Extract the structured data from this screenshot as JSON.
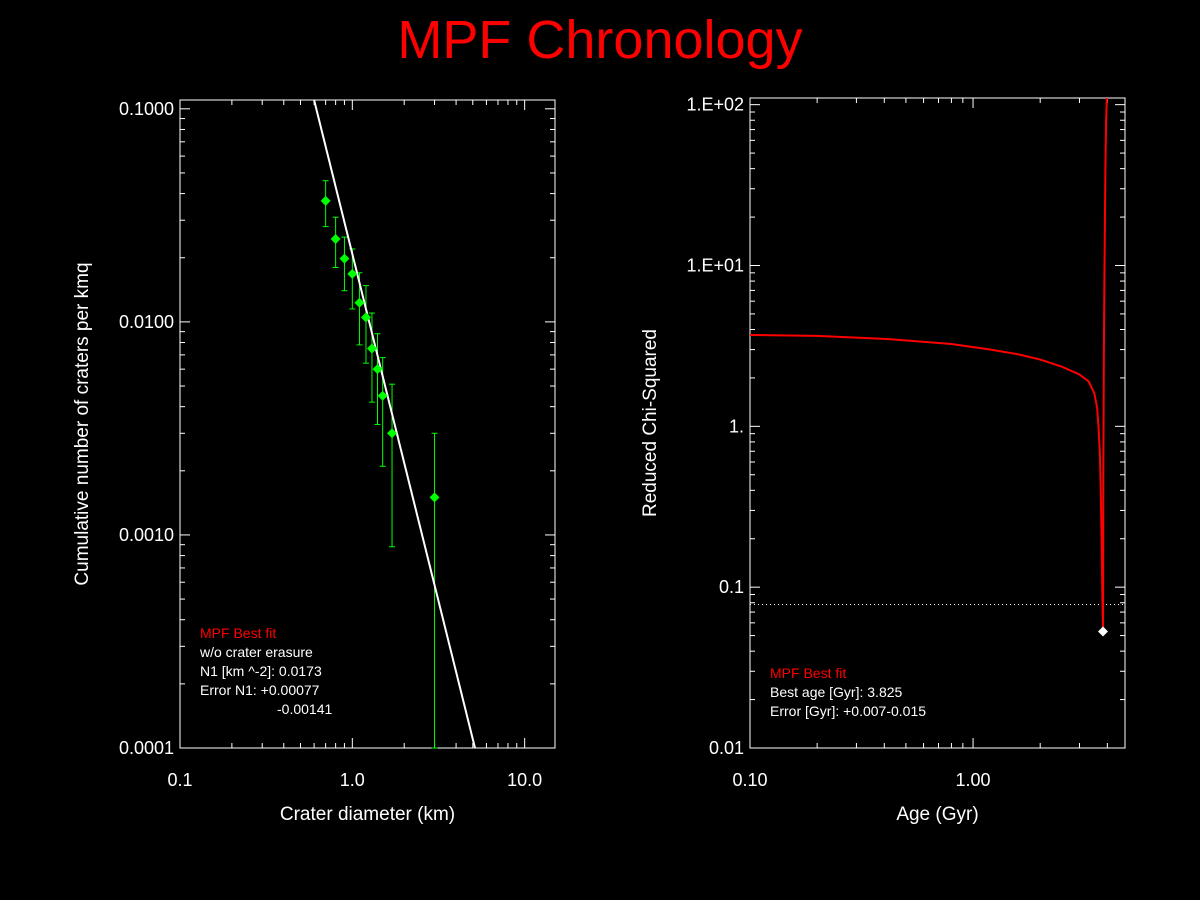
{
  "title": "MPF Chronology",
  "colors": {
    "background": "#000000",
    "title": "#ff0000",
    "axes": "#ffffff",
    "data_points": "#00ff00",
    "fit_line": "#ffffff",
    "chi_curve": "#ff0000",
    "legend_title": "#ff0000"
  },
  "chart_data": [
    {
      "type": "scatter",
      "xlabel": "Crater diameter (km)",
      "ylabel": "Cumulative number of craters per kmq",
      "xscale": "log",
      "yscale": "log",
      "xlim": [
        0.1,
        15
      ],
      "ylim": [
        0.0001,
        0.11
      ],
      "xticks": [
        0.1,
        1.0,
        10.0
      ],
      "xtick_labels": [
        "0.1",
        "1.0",
        "10.0"
      ],
      "yticks": [
        0.0001,
        0.001,
        0.01,
        0.1
      ],
      "ytick_labels": [
        "0.0001",
        "0.0010",
        "0.0100",
        "0.1000"
      ],
      "series": [
        {
          "kind": "points_with_error_bars",
          "points": [
            {
              "x": 0.7,
              "y": 0.037,
              "err_low": 0.028,
              "err_high": 0.046
            },
            {
              "x": 0.8,
              "y": 0.0245,
              "err_low": 0.018,
              "err_high": 0.031
            },
            {
              "x": 0.9,
              "y": 0.0198,
              "err_low": 0.014,
              "err_high": 0.025
            },
            {
              "x": 1.0,
              "y": 0.0168,
              "err_low": 0.0115,
              "err_high": 0.022
            },
            {
              "x": 1.1,
              "y": 0.0123,
              "err_low": 0.0078,
              "err_high": 0.017
            },
            {
              "x": 1.2,
              "y": 0.0105,
              "err_low": 0.0064,
              "err_high": 0.0148
            },
            {
              "x": 1.3,
              "y": 0.0075,
              "err_low": 0.0042,
              "err_high": 0.011
            },
            {
              "x": 1.4,
              "y": 0.006,
              "err_low": 0.0033,
              "err_high": 0.0088
            },
            {
              "x": 1.5,
              "y": 0.0045,
              "err_low": 0.0021,
              "err_high": 0.0068
            },
            {
              "x": 1.7,
              "y": 0.003,
              "err_low": 0.00088,
              "err_high": 0.0051
            },
            {
              "x": 3.0,
              "y": 0.0015,
              "err_low": 0.0001,
              "err_high": 0.003
            }
          ]
        },
        {
          "kind": "fit_line",
          "x": [
            0.6,
            5.15
          ],
          "y": [
            0.11,
            0.0001
          ]
        }
      ],
      "legend": {
        "title": "MPF Best fit",
        "lines": [
          "w/o crater erasure",
          "N1 [km ^-2]: 0.0173",
          "Error N1: +0.00077",
          "-0.00141"
        ]
      }
    },
    {
      "type": "line",
      "xlabel": "Age (Gyr)",
      "ylabel": "Reduced Chi-Squared",
      "xscale": "log",
      "yscale": "log",
      "xlim": [
        0.1,
        4.8
      ],
      "ylim": [
        0.01,
        110
      ],
      "xticks": [
        0.1,
        1.0
      ],
      "xtick_labels": [
        "0.10",
        "1.00"
      ],
      "yticks": [
        0.01,
        0.1,
        1,
        10,
        100
      ],
      "ytick_labels": [
        "0.01",
        "0.1",
        "1.",
        "1.E+01",
        "1.E+02"
      ],
      "series": [
        {
          "kind": "curve",
          "x": [
            0.1,
            0.2,
            0.4,
            0.8,
            1.2,
            1.6,
            2.0,
            2.5,
            3.0,
            3.3,
            3.5,
            3.6,
            3.65,
            3.7,
            3.73,
            3.76,
            3.78,
            3.8,
            3.81,
            3.82,
            3.825,
            3.83,
            3.84,
            3.86,
            3.88,
            3.9,
            3.92,
            3.95,
            3.98
          ],
          "y": [
            3.7,
            3.65,
            3.5,
            3.25,
            3.0,
            2.8,
            2.6,
            2.35,
            2.1,
            1.9,
            1.6,
            1.3,
            1.0,
            0.7,
            0.45,
            0.25,
            0.15,
            0.09,
            0.07,
            0.06,
            0.055,
            0.08,
            0.6,
            3.0,
            8.0,
            18.0,
            40.0,
            80.0,
            110.0
          ]
        },
        {
          "kind": "reference_line",
          "y": 0.078
        },
        {
          "kind": "best_point",
          "x": 3.825,
          "y": 0.053
        }
      ],
      "legend": {
        "title": "MPF Best fit",
        "lines": [
          "Best age [Gyr]: 3.825",
          "Error [Gyr]: +0.007-0.015"
        ]
      }
    }
  ]
}
